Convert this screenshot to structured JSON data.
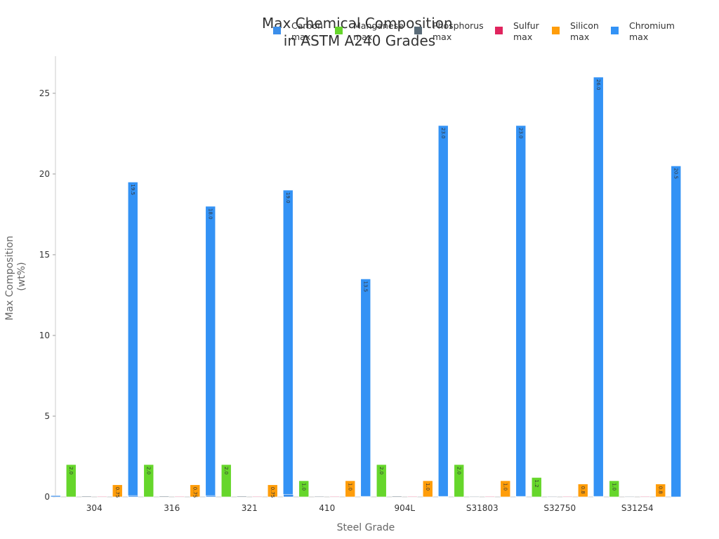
{
  "chart_data": {
    "type": "bar",
    "title_lines": [
      "Max Chemical Composition",
      "in ASTM A240 Grades"
    ],
    "xlabel": "Steel Grade",
    "ylabel_lines": [
      "Max Composition",
      "(wt%)"
    ],
    "ylim": [
      0,
      27.3
    ],
    "yticks": [
      0,
      5,
      10,
      15,
      20,
      25
    ],
    "grid": false,
    "legend_position": "top-right",
    "categories": [
      "304",
      "316",
      "321",
      "410",
      "904L",
      "S31803",
      "S32750",
      "S31254"
    ],
    "series": [
      {
        "name_lines": [
          "Carbon",
          "max"
        ],
        "color": "#3b8eea",
        "values": [
          0.08,
          0.08,
          0.08,
          0.15,
          0.02,
          0.03,
          0.03,
          0.02
        ],
        "labels": [
          "",
          "",
          "",
          "",
          "",
          "",
          "",
          ""
        ]
      },
      {
        "name_lines": [
          "Manganese",
          "max"
        ],
        "color": "#66d62b",
        "values": [
          2.0,
          2.0,
          2.0,
          1.0,
          2.0,
          2.0,
          1.2,
          1.0
        ],
        "labels": [
          "2.0",
          "2.0",
          "2.0",
          "1.0",
          "2.0",
          "2.0",
          "1.2",
          "1.0"
        ]
      },
      {
        "name_lines": [
          "Phosphorus",
          "max"
        ],
        "color": "#5a6b78",
        "values": [
          0.045,
          0.045,
          0.045,
          0.04,
          0.045,
          0.03,
          0.035,
          0.03
        ],
        "labels": [
          "",
          "",
          "",
          "",
          "",
          "",
          "",
          ""
        ]
      },
      {
        "name_lines": [
          "Sulfur",
          "max"
        ],
        "color": "#e0245e",
        "values": [
          0.03,
          0.03,
          0.03,
          0.03,
          0.035,
          0.02,
          0.02,
          0.01
        ],
        "labels": [
          "",
          "",
          "",
          "",
          "",
          "",
          "",
          ""
        ]
      },
      {
        "name_lines": [
          "Silicon",
          "max"
        ],
        "color": "#ff9d0a",
        "values": [
          0.75,
          0.75,
          0.75,
          1.0,
          1.0,
          1.0,
          0.8,
          0.8
        ],
        "labels": [
          "0.75",
          "0.75",
          "0.75",
          "1.0",
          "1.0",
          "1.0",
          "0.8",
          "0.8"
        ]
      },
      {
        "name_lines": [
          "Chromium",
          "max"
        ],
        "color": "#3392f5",
        "values": [
          19.5,
          18.0,
          19.0,
          13.5,
          23.0,
          23.0,
          26.0,
          20.5
        ],
        "labels": [
          "19.5",
          "18.0",
          "19.0",
          "13.5",
          "23.0",
          "23.0",
          "26.0",
          "20.5"
        ]
      }
    ]
  }
}
